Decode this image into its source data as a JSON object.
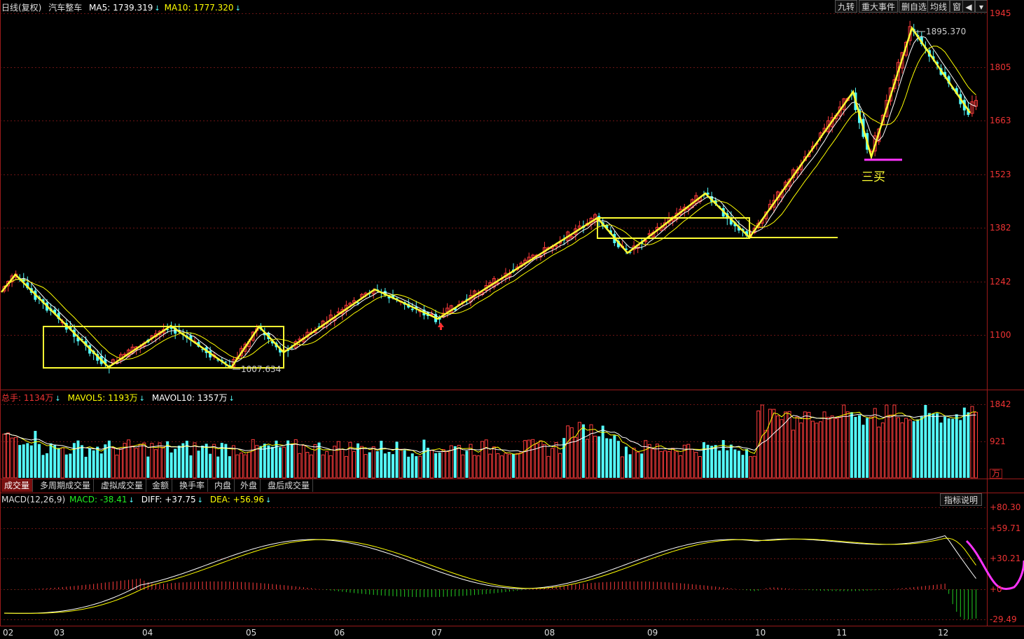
{
  "price_header": {
    "title": "日线(复权)",
    "name": "汽车整车",
    "ma5_label": "MA5:",
    "ma5_value": "1739.319",
    "ma10_label": "MA10:",
    "ma10_value": "1777.320"
  },
  "top_buttons": [
    "九转",
    "重大事件",
    "删自选",
    "均线",
    "窗"
  ],
  "price_axis": [
    "1945",
    "1805",
    "1663",
    "1523",
    "1382",
    "1242",
    "1100"
  ],
  "price_annotations": {
    "high": "1895.370",
    "low": "1007.634",
    "signal": "三买"
  },
  "volume_header": {
    "total_label": "总手:",
    "total_value": "1134万",
    "mavol5_label": "MAVOL5:",
    "mavol5_value": "1193万",
    "mavol10_label": "MAVOL10:",
    "mavol10_value": "1357万"
  },
  "volume_axis": [
    "1842",
    "921",
    "万"
  ],
  "indicator_tabs": [
    "成交量",
    "多周期成交量",
    "虚拟成交量",
    "金额",
    "换手率",
    "内盘",
    "外盘",
    "盘后成交量"
  ],
  "macd_header": {
    "name": "MACD(12,26,9)",
    "macd_label": "MACD:",
    "macd_value": "-38.41",
    "diff_label": "DIFF:",
    "diff_value": "+37.75",
    "dea_label": "DEA:",
    "dea_value": "+56.96"
  },
  "macd_button": "指标说明",
  "macd_axis": [
    "+80.30",
    "+59.71",
    "+30.21",
    "+0",
    "-29.49"
  ],
  "x_axis": [
    "02",
    "03",
    "04",
    "05",
    "06",
    "07",
    "08",
    "09",
    "10",
    "11",
    "12"
  ],
  "colors": {
    "up": "#ff3c3c",
    "down": "#54fcfc",
    "ma5": "#ffffff",
    "ma10": "#ffff00",
    "zigzag": "#ffff33",
    "signal": "#ff33ff",
    "grid": "#7a1a1a"
  },
  "chart_data": {
    "type": "candlestick",
    "y_axis_ticks": [
      1945,
      1805,
      1663,
      1523,
      1382,
      1242,
      1100
    ],
    "zigzag": [
      {
        "month": "02",
        "value": 1252
      },
      {
        "month": "03",
        "value": 1050
      },
      {
        "month": "04",
        "value": 1130
      },
      {
        "month": "04",
        "value": 1007.634
      },
      {
        "month": "05",
        "value": 1130
      },
      {
        "month": "05",
        "value": 1055
      },
      {
        "month": "06",
        "value": 1220
      },
      {
        "month": "07",
        "value": 1150
      },
      {
        "month": "08",
        "value": 1412
      },
      {
        "month": "09",
        "value": 1335
      },
      {
        "month": "09",
        "value": 1470
      },
      {
        "month": "10",
        "value": 1368
      },
      {
        "month": "11",
        "value": 1747
      },
      {
        "month": "11",
        "value": 1565
      },
      {
        "month": "12",
        "value": 1895.37
      },
      {
        "month": "12",
        "value": 1694
      }
    ],
    "volume_axis_ticks": [
      1842,
      921
    ],
    "macd_axis_ticks": [
      80.3,
      59.71,
      30.21,
      0,
      -29.49
    ]
  }
}
